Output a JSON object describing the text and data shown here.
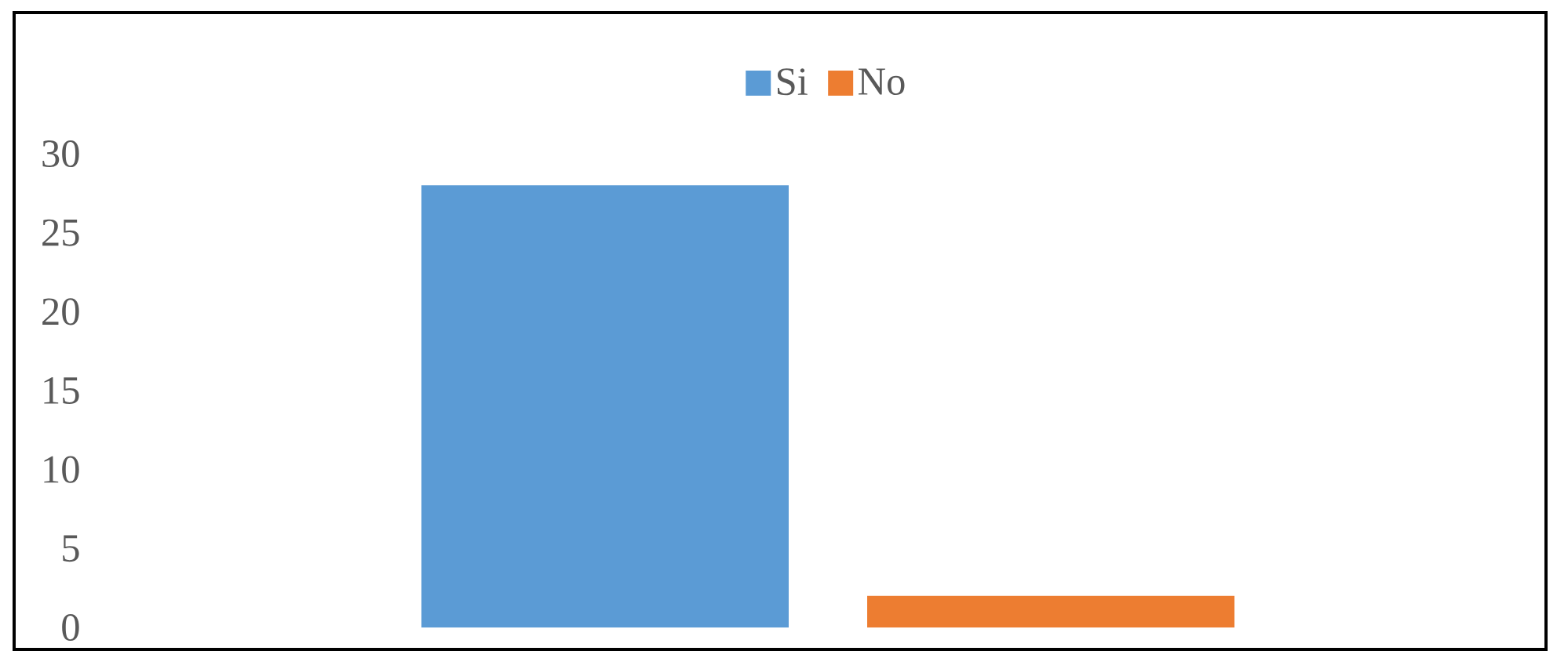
{
  "chart_data": {
    "type": "bar",
    "categories": [
      null
    ],
    "series": [
      {
        "name": "Si",
        "color": "#5b9bd5",
        "values": [
          28
        ]
      },
      {
        "name": "No",
        "color": "#ed7d31",
        "values": [
          2
        ]
      }
    ],
    "ylim": [
      0,
      30
    ],
    "yticks": [
      0,
      5,
      10,
      15,
      20,
      25,
      30
    ],
    "grid": false,
    "legend": "top"
  }
}
